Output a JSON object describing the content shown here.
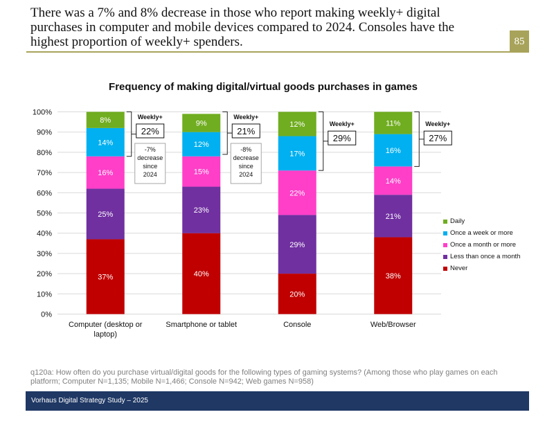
{
  "headline": "There was a 7% and 8% decrease in those who report making weekly+ digital purchases in computer and mobile devices compared to 2024. Consoles have the highest proportion of weekly+ spenders.",
  "page_number": "85",
  "footnote": "q120a: How often do you purchase virtual/digital goods for the following types of gaming systems? (Among those who play games on each platform; Computer N=1,135; Mobile N=1,466; Console N=942; Web games N=958)",
  "footer": "Vorhaus Digital Strategy Study – 2025",
  "colors": {
    "never": "#c00000",
    "less_monthly": "#7030a0",
    "monthly": "#ff3fc8",
    "weekly": "#00b0f0",
    "daily": "#70ad20",
    "gridline": "#d9d9d9",
    "bracket": "#222222"
  },
  "chart_data": {
    "type": "bar",
    "stacked": true,
    "title": "Frequency of making digital/virtual goods purchases in games",
    "categories": [
      "Computer (desktop or laptop)",
      "Smartphone or tablet",
      "Console",
      "Web/Browser"
    ],
    "series": [
      {
        "name": "Never",
        "color_key": "never",
        "values": [
          37,
          40,
          20,
          38
        ]
      },
      {
        "name": "Less than once a month",
        "color_key": "less_monthly",
        "values": [
          25,
          23,
          29,
          21
        ]
      },
      {
        "name": "Once a month or more",
        "color_key": "monthly",
        "values": [
          16,
          15,
          22,
          14
        ]
      },
      {
        "name": "Once a week or more",
        "color_key": "weekly",
        "values": [
          14,
          12,
          17,
          16
        ]
      },
      {
        "name": "Daily",
        "color_key": "daily",
        "values": [
          8,
          9,
          12,
          11
        ]
      }
    ],
    "legend_order": [
      "Daily",
      "Once a week or more",
      "Once a month or more",
      "Less than once a month",
      "Never"
    ],
    "ylim": [
      0,
      100
    ],
    "yticks": [
      0,
      10,
      20,
      30,
      40,
      50,
      60,
      70,
      80,
      90,
      100
    ],
    "ytick_suffix": "%",
    "gridlines": true,
    "legend_position": "right",
    "weekly_plus": [
      {
        "label": "Weekly+",
        "value": "22%",
        "change": [
          "-7%",
          "decrease",
          "since",
          "2024"
        ]
      },
      {
        "label": "Weekly+",
        "value": "21%",
        "change": [
          "-8%",
          "decrease",
          "since",
          "2024"
        ]
      },
      {
        "label": "Weekly+",
        "value": "29%",
        "change": null
      },
      {
        "label": "Weekly+",
        "value": "27%",
        "change": null
      }
    ]
  }
}
